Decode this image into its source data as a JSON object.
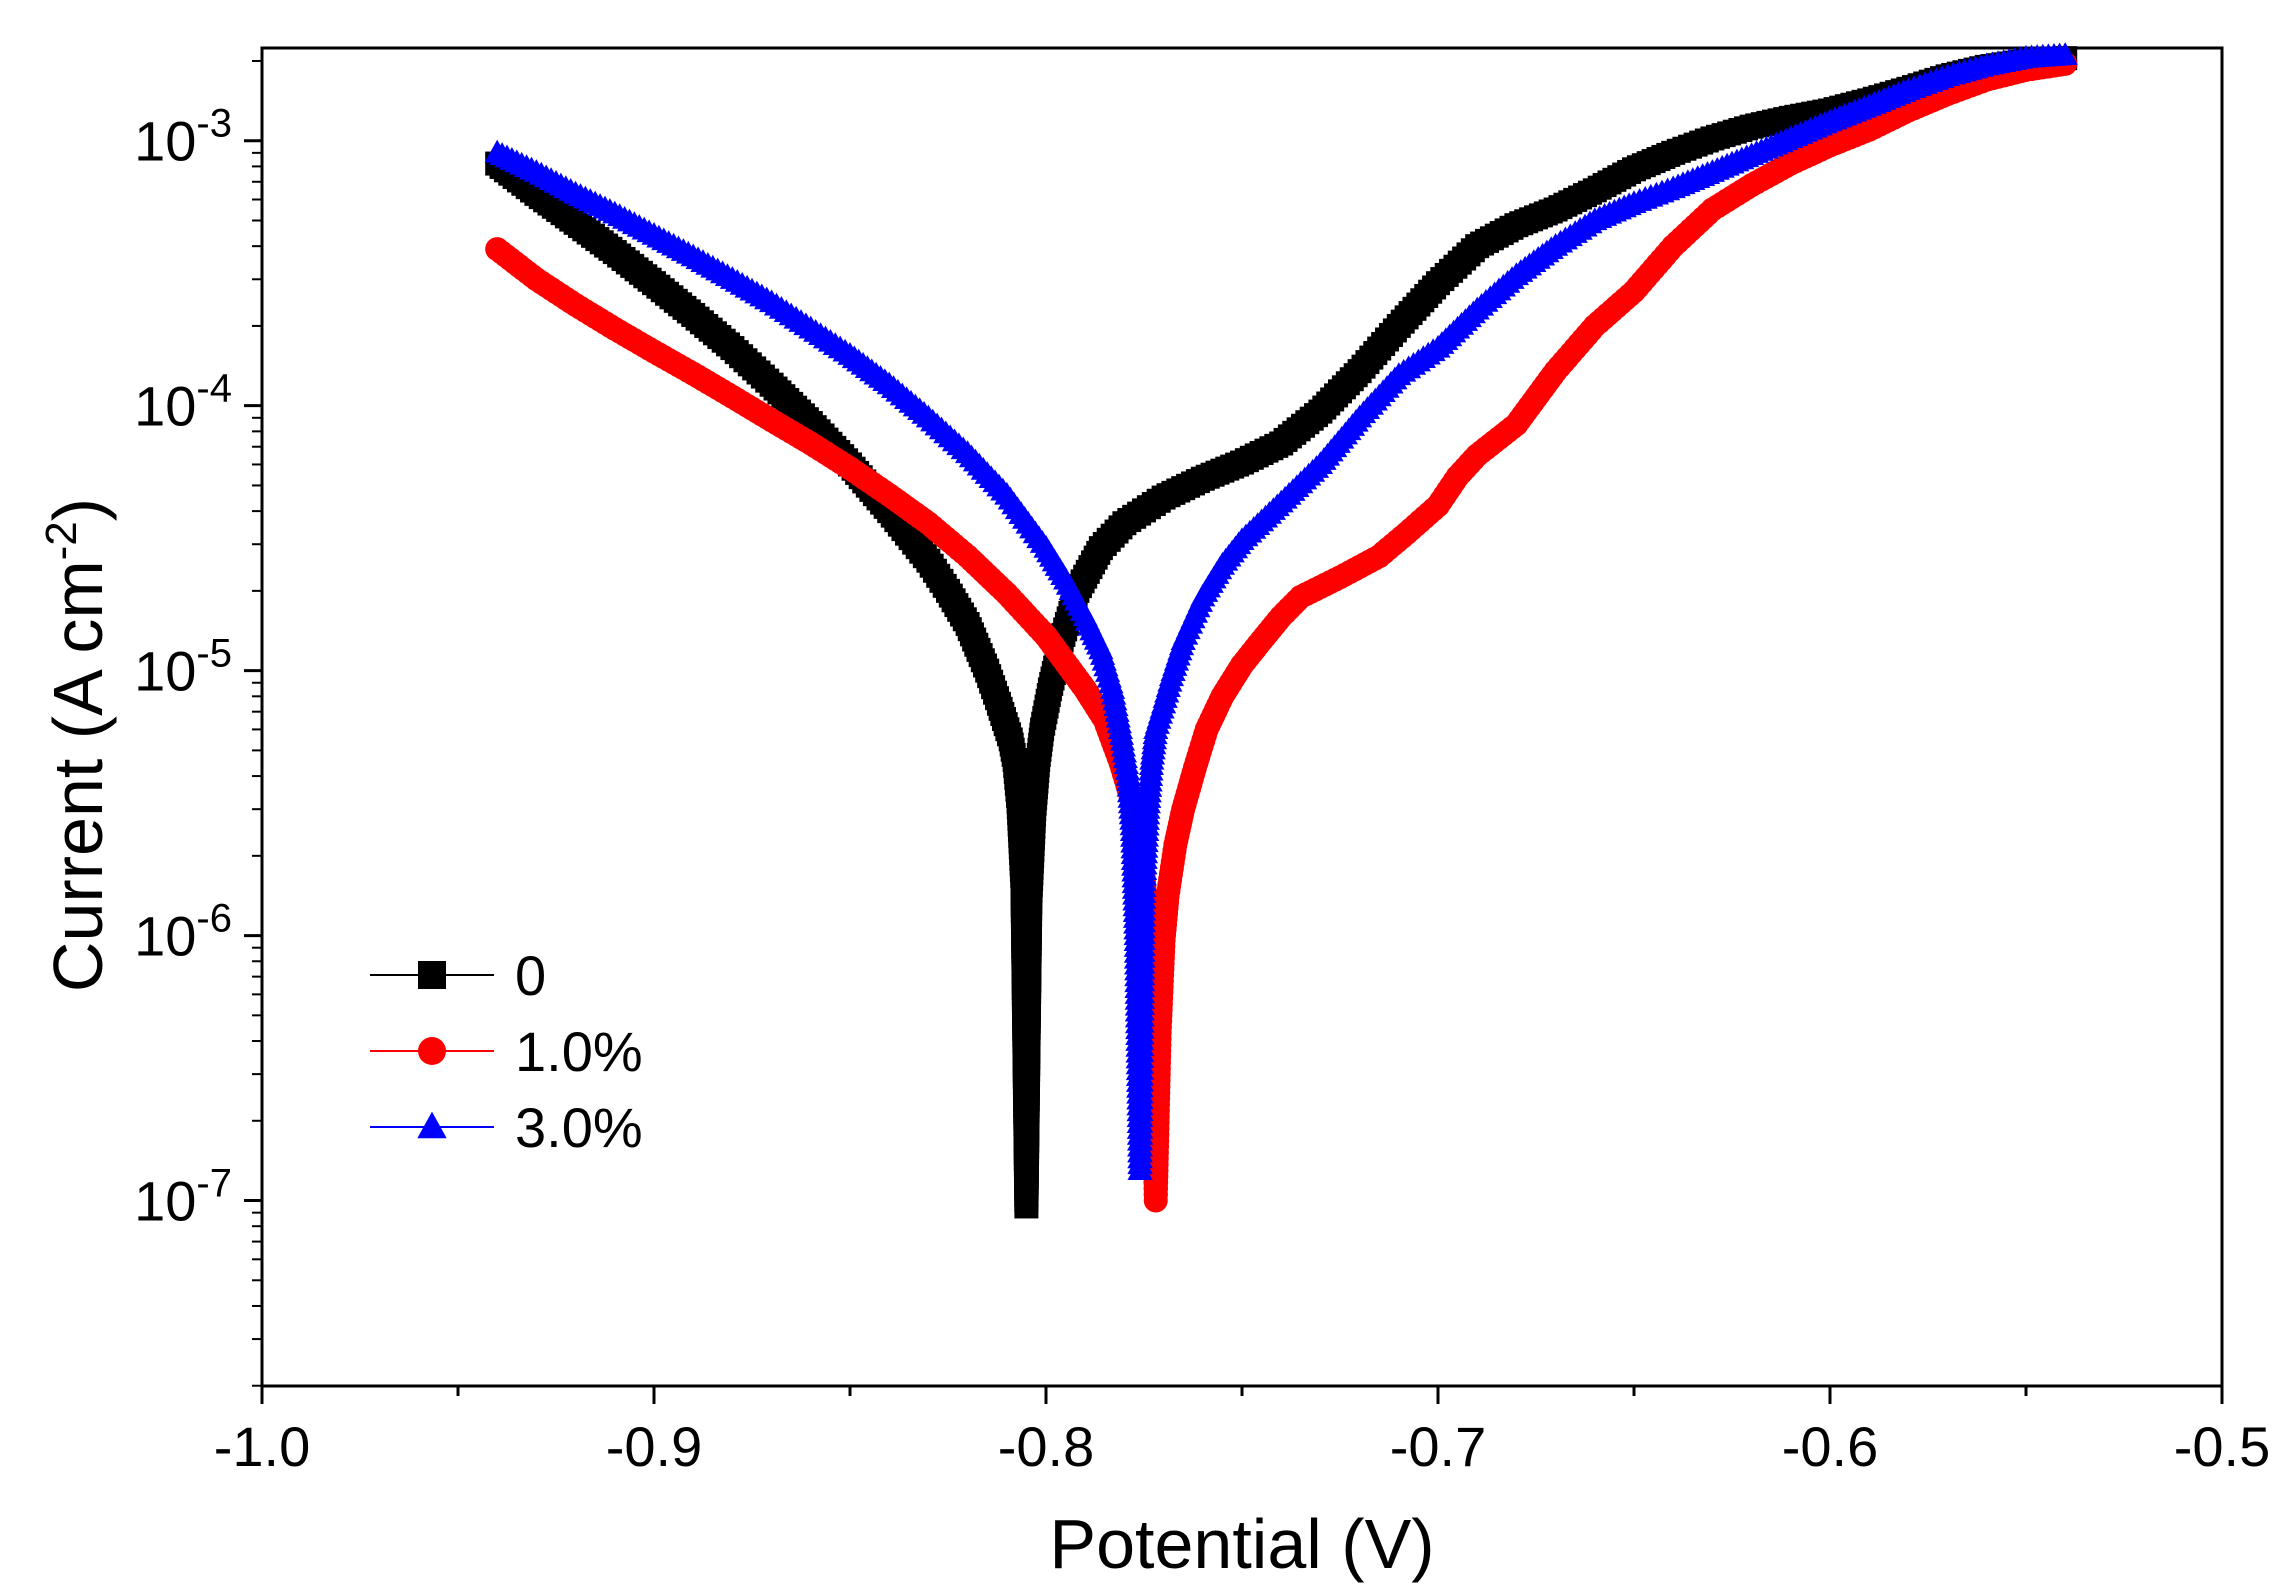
{
  "chart_data": {
    "type": "scatter",
    "xlabel": "Potential (V)",
    "ylabel": {
      "text": "Current (A cm",
      "sup": "-2",
      "close": ")"
    },
    "xlim": [
      -1.0,
      -0.5
    ],
    "ylog": true,
    "ylim_log10": [
      -7.7,
      -2.65
    ],
    "x_ticks": [
      "-1.0",
      "-0.9",
      "-0.8",
      "-0.7",
      "-0.6",
      "-0.5"
    ],
    "x_tick_values": [
      -1.0,
      -0.9,
      -0.8,
      -0.7,
      -0.6,
      -0.5
    ],
    "y_ticks": [
      {
        "value": 1e-07,
        "base": "10",
        "exp": "-7"
      },
      {
        "value": 1e-06,
        "base": "10",
        "exp": "-6"
      },
      {
        "value": 1e-05,
        "base": "10",
        "exp": "-5"
      },
      {
        "value": 0.0001,
        "base": "10",
        "exp": "-4"
      },
      {
        "value": 0.001,
        "base": "10",
        "exp": "-3"
      }
    ],
    "legend_position": "left-bottom",
    "series": [
      {
        "name": "0",
        "color": "#000000",
        "marker": "square",
        "points": [
          [
            -0.94,
            0.00082
          ],
          [
            -0.93,
            0.00063
          ],
          [
            -0.92,
            0.00049
          ],
          [
            -0.91,
            0.00038
          ],
          [
            -0.9,
            0.00029
          ],
          [
            -0.89,
            0.00022
          ],
          [
            -0.88,
            0.000165
          ],
          [
            -0.87,
            0.00012
          ],
          [
            -0.86,
            8.6e-05
          ],
          [
            -0.85,
            6e-05
          ],
          [
            -0.84,
            4e-05
          ],
          [
            -0.83,
            2.6e-05
          ],
          [
            -0.825,
            2e-05
          ],
          [
            -0.82,
            1.5e-05
          ],
          [
            -0.815,
            1e-05
          ],
          [
            -0.812,
            7.5e-06
          ],
          [
            -0.809,
            5.5e-06
          ],
          [
            -0.808,
            4.6e-06
          ],
          [
            -0.807,
            3.2e-06
          ],
          [
            -0.806,
            1.6e-06
          ],
          [
            -0.805,
            9.5e-08
          ],
          [
            -0.804,
            1.4e-06
          ],
          [
            -0.803,
            3e-06
          ],
          [
            -0.802,
            4.6e-06
          ],
          [
            -0.801,
            6e-06
          ],
          [
            -0.799,
            8.5e-06
          ],
          [
            -0.796,
            1.3e-05
          ],
          [
            -0.792,
            2e-05
          ],
          [
            -0.786,
            2.9e-05
          ],
          [
            -0.78,
            3.6e-05
          ],
          [
            -0.77,
            4.5e-05
          ],
          [
            -0.76,
            5.3e-05
          ],
          [
            -0.75,
            6.1e-05
          ],
          [
            -0.74,
            7.2e-05
          ],
          [
            -0.73,
            9.5e-05
          ],
          [
            -0.72,
            0.000135
          ],
          [
            -0.71,
            0.0002
          ],
          [
            -0.7,
            0.00029
          ],
          [
            -0.69,
            0.0004
          ],
          [
            -0.68,
            0.00048
          ],
          [
            -0.67,
            0.00055
          ],
          [
            -0.66,
            0.00065
          ],
          [
            -0.65,
            0.00078
          ],
          [
            -0.64,
            0.0009
          ],
          [
            -0.63,
            0.00102
          ],
          [
            -0.62,
            0.00113
          ],
          [
            -0.61,
            0.00122
          ],
          [
            -0.6,
            0.0013
          ],
          [
            -0.59,
            0.00142
          ],
          [
            -0.58,
            0.00157
          ],
          [
            -0.57,
            0.00175
          ],
          [
            -0.56,
            0.0019
          ],
          [
            -0.55,
            0.002
          ],
          [
            -0.54,
            0.00205
          ]
        ]
      },
      {
        "name": "1.0%",
        "color": "#ff0000",
        "marker": "circle",
        "points": [
          [
            -0.94,
            0.00039
          ],
          [
            -0.93,
            0.0003
          ],
          [
            -0.92,
            0.00024
          ],
          [
            -0.91,
            0.000195
          ],
          [
            -0.9,
            0.00016
          ],
          [
            -0.89,
            0.000132
          ],
          [
            -0.88,
            0.000108
          ],
          [
            -0.87,
            8.8e-05
          ],
          [
            -0.86,
            7.2e-05
          ],
          [
            -0.85,
            5.8e-05
          ],
          [
            -0.84,
            4.6e-05
          ],
          [
            -0.83,
            3.6e-05
          ],
          [
            -0.82,
            2.7e-05
          ],
          [
            -0.81,
            1.95e-05
          ],
          [
            -0.8,
            1.35e-05
          ],
          [
            -0.79,
            8.5e-06
          ],
          [
            -0.785,
            6.5e-06
          ],
          [
            -0.781,
            4.5e-06
          ],
          [
            -0.778,
            3.2e-06
          ],
          [
            -0.776,
            2.2e-06
          ],
          [
            -0.775,
            1.6e-06
          ],
          [
            -0.774,
            1e-06
          ],
          [
            -0.773,
            6.2e-07
          ],
          [
            -0.772,
            1e-07
          ],
          [
            -0.771,
            4.3e-07
          ],
          [
            -0.77,
            9.6e-07
          ],
          [
            -0.769,
            1.4e-06
          ],
          [
            -0.767,
            2.2e-06
          ],
          [
            -0.765,
            3e-06
          ],
          [
            -0.762,
            4.3e-06
          ],
          [
            -0.759,
            6e-06
          ],
          [
            -0.755,
            8e-06
          ],
          [
            -0.75,
            1.05e-05
          ],
          [
            -0.745,
            1.3e-05
          ],
          [
            -0.74,
            1.6e-05
          ],
          [
            -0.735,
            1.9e-05
          ],
          [
            -0.725,
            2.25e-05
          ],
          [
            -0.715,
            2.7e-05
          ],
          [
            -0.708,
            3.3e-05
          ],
          [
            -0.7,
            4.2e-05
          ],
          [
            -0.695,
            5.4e-05
          ],
          [
            -0.69,
            6.5e-05
          ],
          [
            -0.68,
            8.5e-05
          ],
          [
            -0.67,
            0.000135
          ],
          [
            -0.66,
            0.0002
          ],
          [
            -0.65,
            0.00027
          ],
          [
            -0.64,
            0.0004
          ],
          [
            -0.63,
            0.00055
          ],
          [
            -0.62,
            0.00068
          ],
          [
            -0.61,
            0.00082
          ],
          [
            -0.6,
            0.00096
          ],
          [
            -0.59,
            0.0011
          ],
          [
            -0.58,
            0.0013
          ],
          [
            -0.57,
            0.0015
          ],
          [
            -0.56,
            0.0017
          ],
          [
            -0.55,
            0.00185
          ],
          [
            -0.54,
            0.00195
          ]
        ]
      },
      {
        "name": "3.0%",
        "color": "#0000ff",
        "marker": "triangle",
        "points": [
          [
            -0.94,
            0.0009
          ],
          [
            -0.93,
            0.00076
          ],
          [
            -0.92,
            0.00063
          ],
          [
            -0.91,
            0.00053
          ],
          [
            -0.9,
            0.00044
          ],
          [
            -0.89,
            0.000365
          ],
          [
            -0.88,
            0.0003
          ],
          [
            -0.87,
            0.000245
          ],
          [
            -0.86,
            0.000195
          ],
          [
            -0.85,
            0.000155
          ],
          [
            -0.84,
            0.00012
          ],
          [
            -0.83,
            9e-05
          ],
          [
            -0.82,
            6.6e-05
          ],
          [
            -0.81,
            4.6e-05
          ],
          [
            -0.8,
            2.9e-05
          ],
          [
            -0.795,
            2.2e-05
          ],
          [
            -0.79,
            1.6e-05
          ],
          [
            -0.786,
            1.2e-05
          ],
          [
            -0.783,
            8.5e-06
          ],
          [
            -0.781,
            6e-06
          ],
          [
            -0.779,
            4e-06
          ],
          [
            -0.778,
            2.6e-06
          ],
          [
            -0.777,
            1e-06
          ],
          [
            -0.776,
            1.3e-07
          ],
          [
            -0.775,
            1.6e-06
          ],
          [
            -0.774,
            3e-06
          ],
          [
            -0.773,
            4.6e-06
          ],
          [
            -0.772,
            6e-06
          ],
          [
            -0.77,
            7.5e-06
          ],
          [
            -0.768,
            9.5e-06
          ],
          [
            -0.765,
            1.3e-05
          ],
          [
            -0.76,
            1.9e-05
          ],
          [
            -0.755,
            2.5e-05
          ],
          [
            -0.75,
            3.1e-05
          ],
          [
            -0.74,
            4.3e-05
          ],
          [
            -0.73,
            6e-05
          ],
          [
            -0.72,
            9e-05
          ],
          [
            -0.71,
            0.00013
          ],
          [
            -0.7,
            0.000165
          ],
          [
            -0.69,
            0.00023
          ],
          [
            -0.68,
            0.00031
          ],
          [
            -0.67,
            0.0004
          ],
          [
            -0.66,
            0.0005
          ],
          [
            -0.65,
            0.00058
          ],
          [
            -0.64,
            0.00066
          ],
          [
            -0.63,
            0.00076
          ],
          [
            -0.62,
            0.00088
          ],
          [
            -0.61,
            0.00102
          ],
          [
            -0.6,
            0.00118
          ],
          [
            -0.59,
            0.00135
          ],
          [
            -0.58,
            0.00155
          ],
          [
            -0.57,
            0.00175
          ],
          [
            -0.56,
            0.00192
          ],
          [
            -0.55,
            0.00205
          ],
          [
            -0.54,
            0.0021
          ]
        ]
      }
    ]
  }
}
